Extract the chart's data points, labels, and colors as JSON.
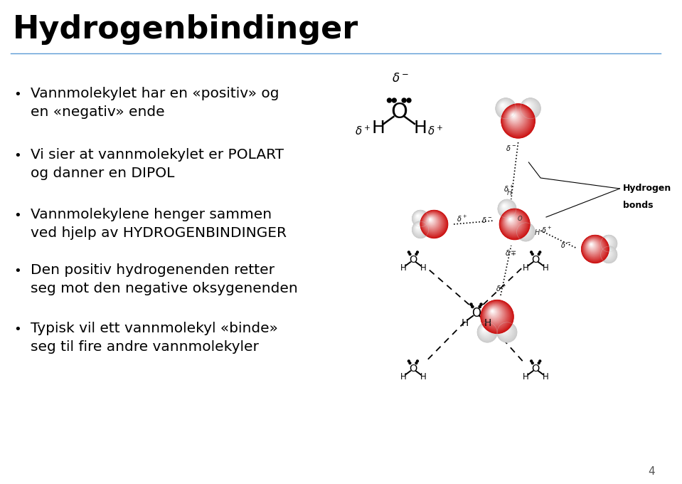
{
  "title": "Hydrogenbindinger",
  "title_fontsize": 32,
  "title_color": "#000000",
  "bg_color": "#ffffff",
  "line_color": "#5B9BD5",
  "text_color": "#000000",
  "bullet_color": "#000000",
  "bullet_points": [
    "Vannmolekylet har en «positiv» og\nen «negativ» ende",
    "Vi sier at vannmolekylet er POLART\nog danner en DIPOL",
    "Vannmolekylene henger sammen\nved hjelp av HYDROGENBINDINGER",
    "Den positiv hydrogenenden retter\nseg mot den negative oksygenenden",
    "Typisk vil ett vannmolekyl «binde»\nseg til fire andre vannmolekyler"
  ],
  "bullet_fontsize": 14.5,
  "page_number": "4"
}
